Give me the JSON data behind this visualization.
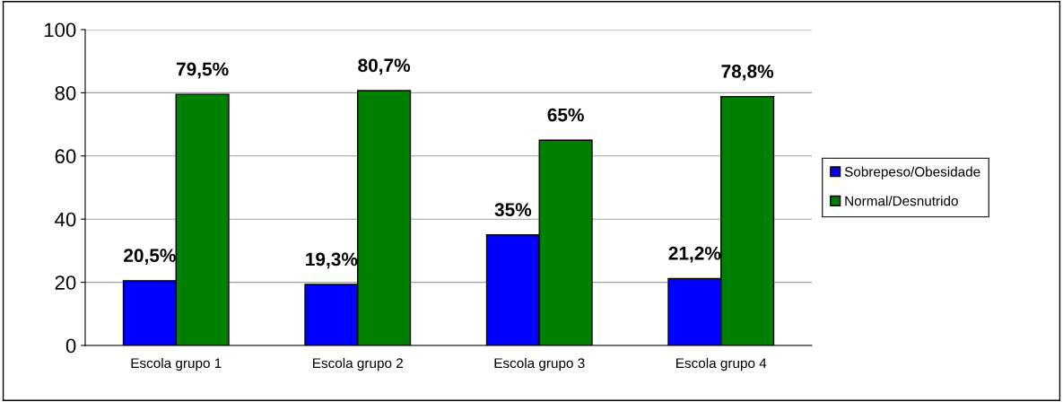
{
  "chart_data": {
    "type": "bar",
    "categories": [
      "Escola grupo 1",
      "Escola grupo 2",
      "Escola grupo 3",
      "Escola grupo 4"
    ],
    "series": [
      {
        "name": "Sobrepeso/Obesidade",
        "color": "#0000ff",
        "values": [
          20.5,
          19.3,
          35,
          21.2
        ],
        "value_labels": [
          "20,5%",
          "19,3%",
          "35%",
          "21,2%"
        ]
      },
      {
        "name": "Normal/Desnutrido",
        "color": "#008000",
        "values": [
          79.5,
          80.7,
          65,
          78.8
        ],
        "value_labels": [
          "79,5%",
          "80,7%",
          "65%",
          "78,8%"
        ]
      }
    ],
    "ylim": [
      0,
      100
    ],
    "yticks": [
      0,
      20,
      40,
      60,
      80,
      100
    ],
    "grid": "y",
    "legend": "right"
  }
}
